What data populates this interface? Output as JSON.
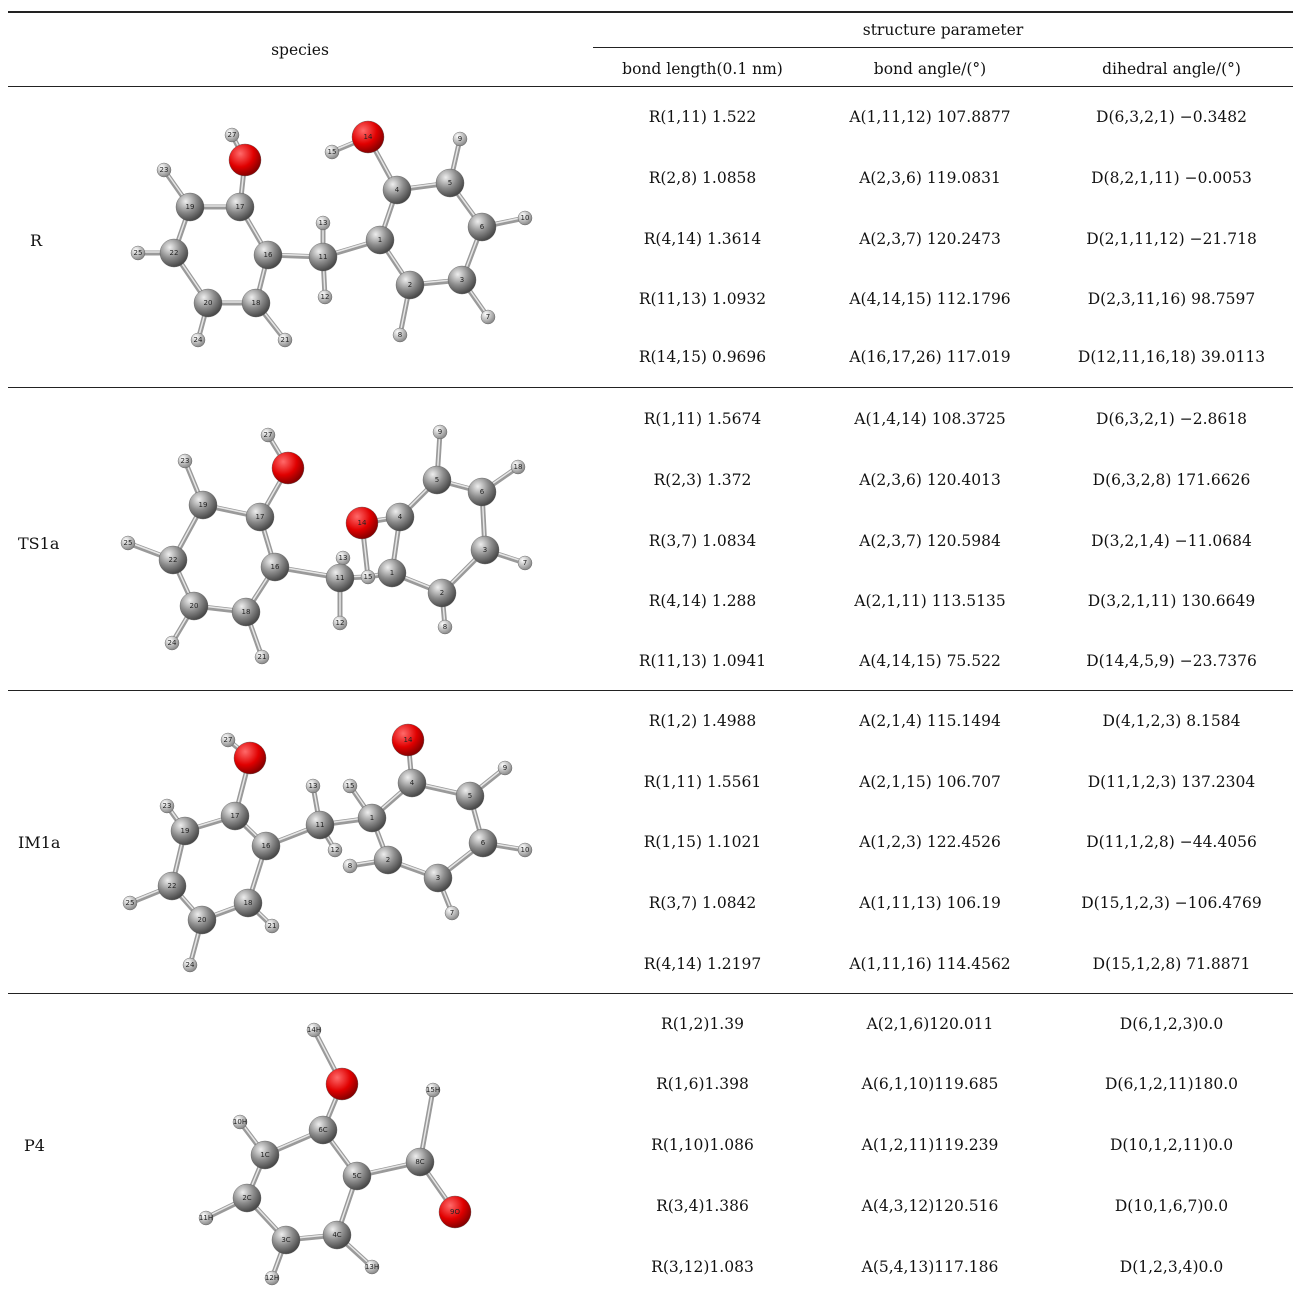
{
  "header": {
    "species": "species",
    "structure_parameter": "structure parameter",
    "bond_length": "bond length(0.1 nm)",
    "bond_angle": "bond angle/(°)",
    "dihedral_angle": "dihedral angle/(°)"
  },
  "rows": [
    {
      "species": "R",
      "atom_labels": [
        "27",
        "15",
        "14",
        "9",
        "23",
        "19",
        "17",
        "4",
        "5",
        "13",
        "25",
        "22",
        "16",
        "11",
        "1",
        "6",
        "10",
        "12",
        "20",
        "18",
        "2",
        "3",
        "24",
        "21",
        "8",
        "7"
      ],
      "bonds": [
        "R(1,11) 1.522",
        "R(2,8) 1.0858",
        "R(4,14) 1.3614",
        "R(11,13) 1.0932",
        "R(14,15) 0.9696"
      ],
      "angles": [
        "A(1,11,12) 107.8877",
        "A(2,3,6) 119.0831",
        "A(2,3,7) 120.2473",
        "A(4,14,15) 112.1796",
        "A(16,17,26) 117.019"
      ],
      "dihedrals": [
        "D(6,3,2,1) −0.3482",
        "D(8,2,1,11) −0.0053",
        "D(2,1,11,12) −21.718",
        "D(2,3,11,16) 98.7597",
        "D(12,11,16,18) 39.0113"
      ]
    },
    {
      "species": "TS1a",
      "atom_labels": [
        "27",
        "9",
        "23",
        "18",
        "19",
        "17",
        "5",
        "6",
        "14",
        "4",
        "13",
        "25",
        "22",
        "16",
        "11",
        "15",
        "1",
        "3",
        "7",
        "20",
        "18",
        "2",
        "12",
        "24",
        "8",
        "21"
      ],
      "bonds": [
        "R(1,11) 1.5674",
        "R(2,3) 1.372",
        "R(3,7) 1.0834",
        "R(4,14) 1.288",
        "R(11,13) 1.0941"
      ],
      "angles": [
        "A(1,4,14) 108.3725",
        "A(2,3,6) 120.4013",
        "A(2,3,7) 120.5984",
        "A(2,1,11) 113.5135",
        "A(4,14,15) 75.522"
      ],
      "dihedrals": [
        "D(6,3,2,1) −2.8618",
        "D(6,3,2,8) 171.6626",
        "D(3,2,1,4) −11.0684",
        "D(3,2,1,11) 130.6649",
        "D(14,4,5,9) −23.7376"
      ]
    },
    {
      "species": "IM1a",
      "atom_labels": [
        "27",
        "14",
        "9",
        "13",
        "15",
        "4",
        "5",
        "23",
        "17",
        "19",
        "16",
        "11",
        "1",
        "6",
        "10",
        "12",
        "2",
        "25",
        "22",
        "8",
        "3",
        "20",
        "18",
        "21",
        "7",
        "24"
      ],
      "bonds": [
        "R(1,2) 1.4988",
        "R(1,11) 1.5561",
        "R(1,15) 1.1021",
        "R(3,7) 1.0842",
        "R(4,14) 1.2197"
      ],
      "angles": [
        "A(2,1,4) 115.1494",
        "A(2,1,15) 106.707",
        "A(1,2,3) 122.4526",
        "A(1,11,13) 106.19",
        "A(1,11,16) 114.4562"
      ],
      "dihedrals": [
        "D(4,1,2,3) 8.1584",
        "D(11,1,2,3) 137.2304",
        "D(11,1,2,8) −44.4056",
        "D(15,1,2,3) −106.4769",
        "D(15,1,2,8) 71.8871"
      ]
    },
    {
      "species": "P4",
      "atom_labels": [
        "14H",
        "10H",
        "6C",
        "15H",
        "1C",
        "5C",
        "8C",
        "11H",
        "2C",
        "9O",
        "3C",
        "4C",
        "12H",
        "13H"
      ],
      "bonds": [
        "R(1,2)1.39",
        "R(1,6)1.398",
        "R(1,10)1.086",
        "R(3,4)1.386",
        "R(3,12)1.083"
      ],
      "angles": [
        "A(2,1,6)120.011",
        "A(6,1,10)119.685",
        "A(1,2,11)119.239",
        "A(4,3,12)120.516",
        "A(5,4,13)117.186"
      ],
      "dihedrals": [
        "D(6,1,2,3)0.0",
        "D(6,1,2,11)180.0",
        "D(10,1,2,11)0.0",
        "D(10,1,6,7)0.0",
        "D(1,2,3,4)0.0"
      ]
    }
  ]
}
